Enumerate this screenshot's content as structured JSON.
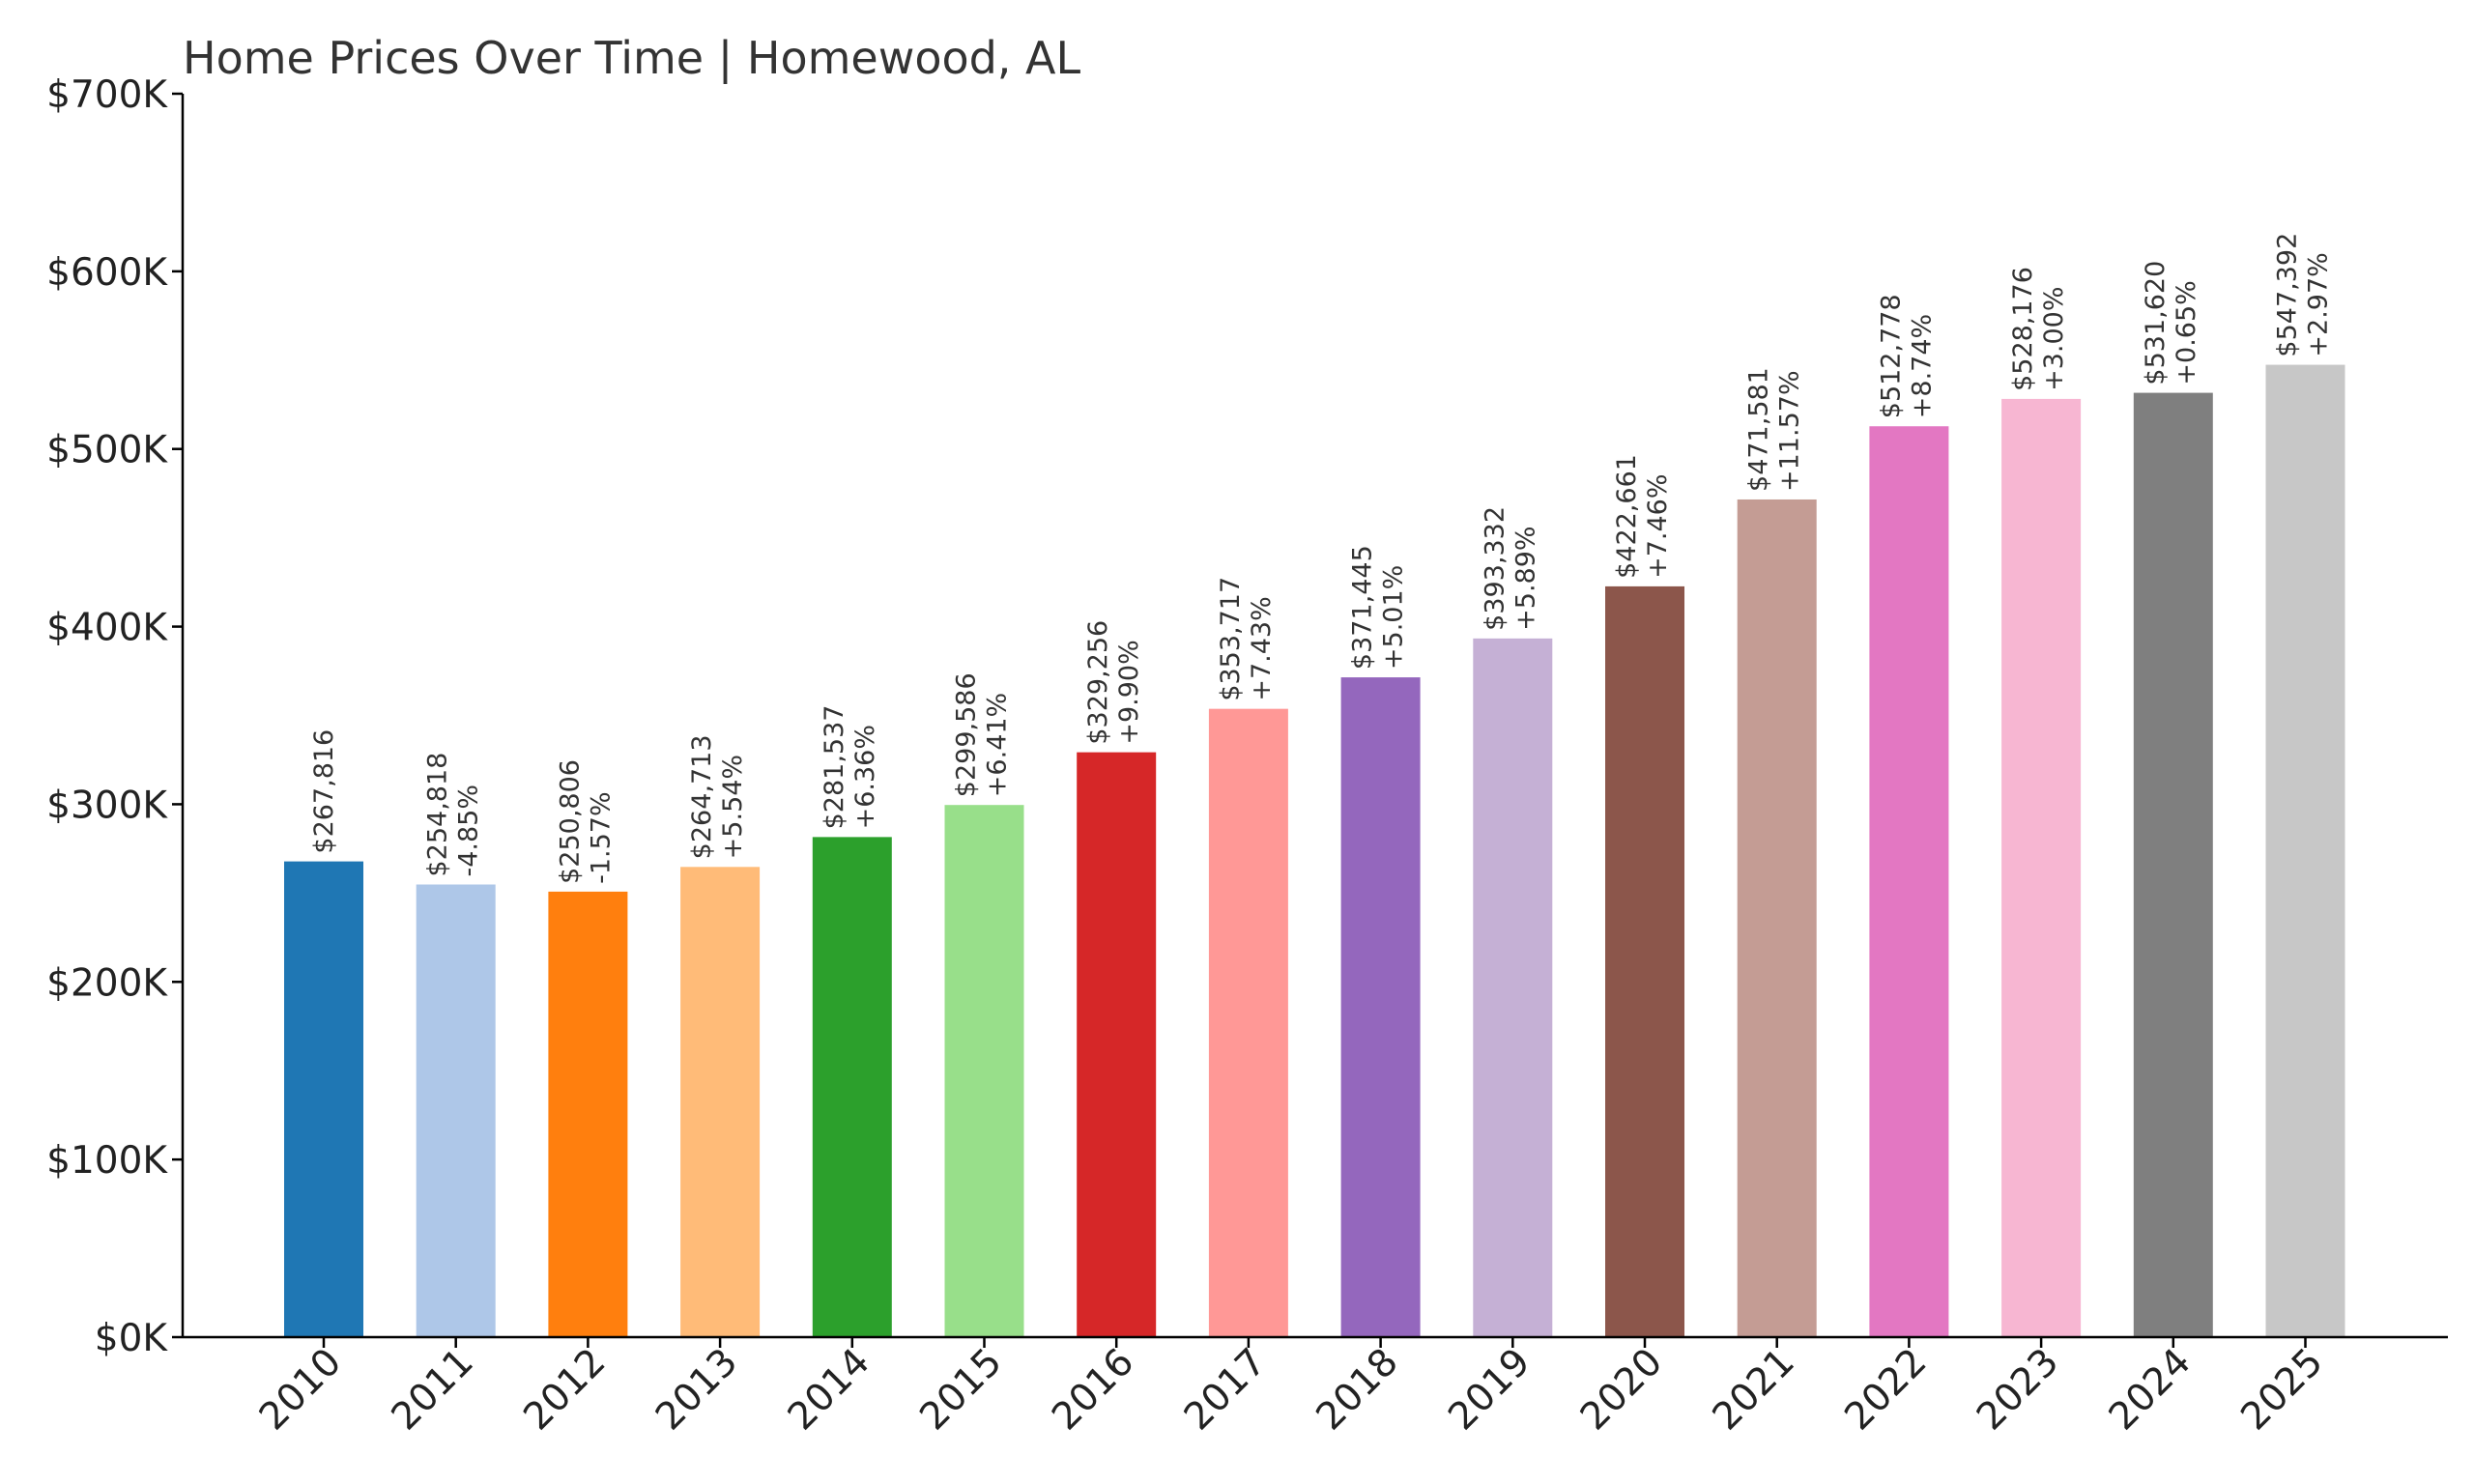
{
  "chart_data": {
    "type": "bar",
    "title": "Home Prices Over Time | Homewood, AL",
    "xlabel": "",
    "ylabel": "",
    "ylim": [
      0,
      700000
    ],
    "y_ticks": [
      {
        "value": 0,
        "label": "$0K"
      },
      {
        "value": 100000,
        "label": "$100K"
      },
      {
        "value": 200000,
        "label": "$200K"
      },
      {
        "value": 300000,
        "label": "$300K"
      },
      {
        "value": 400000,
        "label": "$400K"
      },
      {
        "value": 500000,
        "label": "$500K"
      },
      {
        "value": 600000,
        "label": "$600K"
      },
      {
        "value": 700000,
        "label": "$700K"
      }
    ],
    "grid": false,
    "legend": "none",
    "categories": [
      "2010",
      "2011",
      "2012",
      "2013",
      "2014",
      "2015",
      "2016",
      "2017",
      "2018",
      "2019",
      "2020",
      "2021",
      "2022",
      "2023",
      "2024",
      "2025"
    ],
    "values": [
      267816,
      254818,
      250806,
      264713,
      281537,
      299586,
      329256,
      353717,
      371445,
      393332,
      422661,
      471581,
      512778,
      528176,
      531620,
      547392
    ],
    "value_labels": [
      "$267,816",
      "$254,818",
      "$250,806",
      "$264,713",
      "$281,537",
      "$299,586",
      "$329,256",
      "$353,717",
      "$371,445",
      "$393,332",
      "$422,661",
      "$471,581",
      "$512,778",
      "$528,176",
      "$531,620",
      "$547,392"
    ],
    "change_labels": [
      "",
      "-4.85%",
      "-1.57%",
      "+5.54%",
      "+6.36%",
      "+6.41%",
      "+9.90%",
      "+7.43%",
      "+5.01%",
      "+5.89%",
      "+7.46%",
      "+11.57%",
      "+8.74%",
      "+3.00%",
      "+0.65%",
      "+2.97%"
    ],
    "colors": [
      "#1f77b4",
      "#aec7e8",
      "#ff7f0e",
      "#ffbb78",
      "#2ca02c",
      "#98df8a",
      "#d62728",
      "#ff9896",
      "#9467bd",
      "#c5b0d5",
      "#8c564b",
      "#c49c94",
      "#e377c2",
      "#f7b6d2",
      "#7f7f7f",
      "#c7c7c7"
    ]
  }
}
